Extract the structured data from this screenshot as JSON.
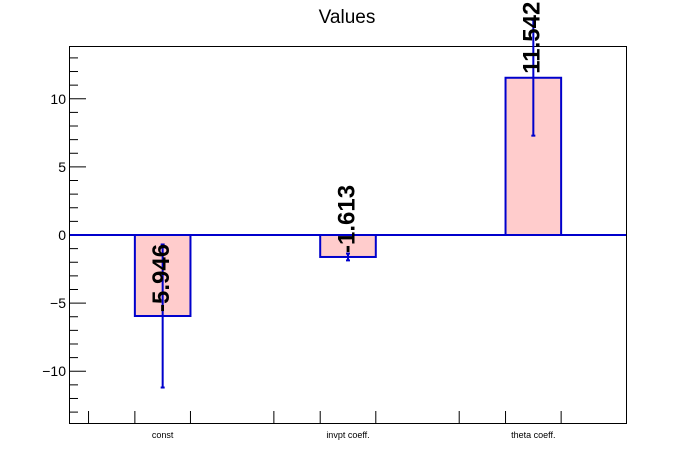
{
  "chart_data": {
    "type": "bar",
    "title": "Values",
    "categories": [
      "const",
      "invpt coeff.",
      "theta coeff."
    ],
    "values": [
      -5.946,
      -1.613,
      11.542
    ],
    "errors": [
      5.25,
      0.25,
      4.25
    ],
    "data_labels": [
      "-5.946",
      "-1.613",
      "11.542"
    ],
    "ylim": [
      -13.8,
      13.8
    ],
    "yticks": [
      -10,
      -5,
      0,
      5,
      10
    ],
    "ytick_labels": [
      "−10",
      "−5",
      "0",
      "5",
      "10"
    ],
    "xlabel": "",
    "ylabel": "",
    "grid": false,
    "colors": {
      "bar_fill": "#ffcccc",
      "bar_edge": "#0000cc",
      "error_bar": "#0000cc",
      "zero_line": "#0000cc"
    }
  }
}
